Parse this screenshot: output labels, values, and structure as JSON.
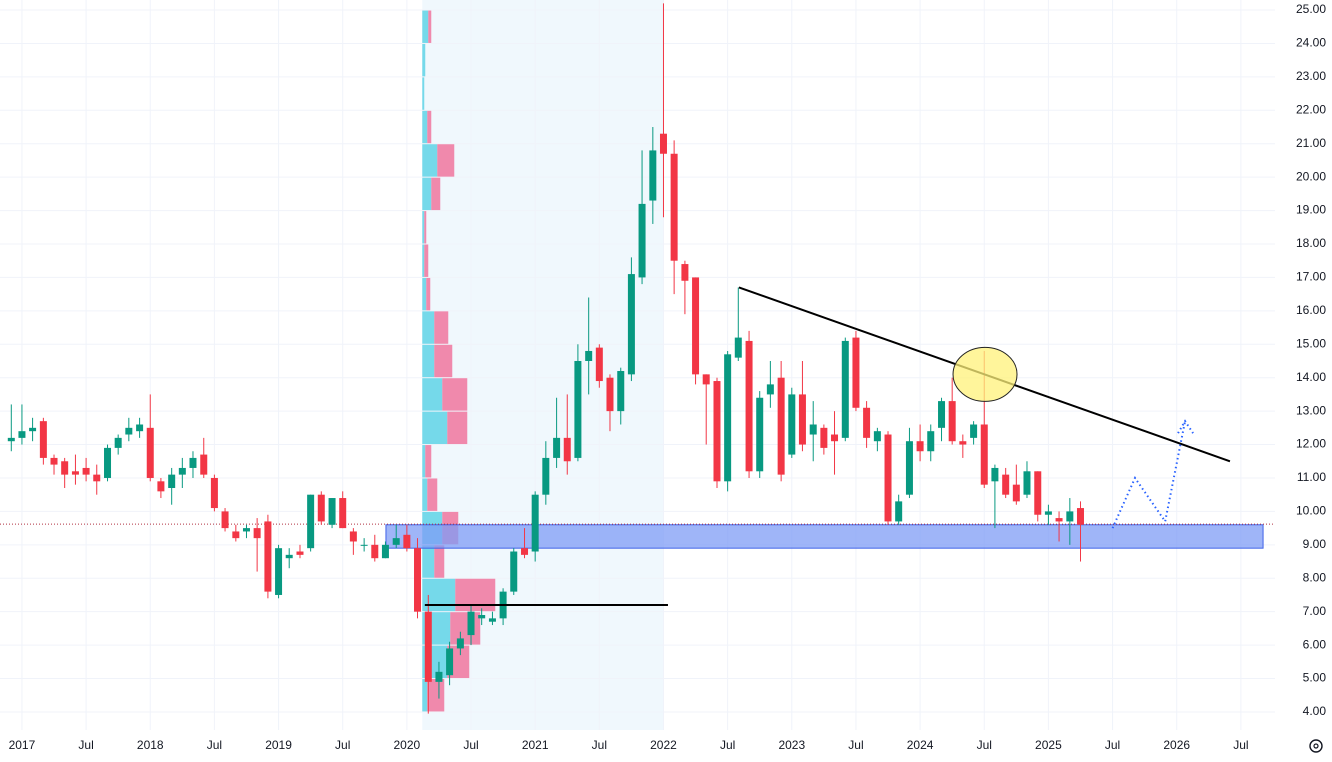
{
  "chart_data": {
    "type": "candlestick",
    "x": [
      2016.917,
      2017,
      2017.083,
      2017.167,
      2017.25,
      2017.333,
      2017.417,
      2017.5,
      2017.583,
      2017.667,
      2017.75,
      2017.833,
      2017.917,
      2018,
      2018.083,
      2018.167,
      2018.25,
      2018.333,
      2018.417,
      2018.5,
      2018.583,
      2018.667,
      2018.75,
      2018.833,
      2018.917,
      2019,
      2019.083,
      2019.167,
      2019.25,
      2019.333,
      2019.417,
      2019.5,
      2019.583,
      2019.667,
      2019.75,
      2019.833,
      2019.917,
      2020,
      2020.083,
      2020.167,
      2020.25,
      2020.333,
      2020.417,
      2020.5,
      2020.583,
      2020.667,
      2020.75,
      2020.833,
      2020.917,
      2021,
      2021.083,
      2021.167,
      2021.25,
      2021.333,
      2021.417,
      2021.5,
      2021.583,
      2021.667,
      2021.75,
      2021.833,
      2021.917,
      2022,
      2022.083,
      2022.167,
      2022.25,
      2022.333,
      2022.417,
      2022.5,
      2022.583,
      2022.667,
      2022.75,
      2022.833,
      2022.917,
      2023,
      2023.083,
      2023.167,
      2023.25,
      2023.333,
      2023.417,
      2023.5,
      2023.583,
      2023.667,
      2023.75,
      2023.833,
      2023.917,
      2024,
      2024.083,
      2024.167,
      2024.25,
      2024.333,
      2024.417,
      2024.5,
      2024.583,
      2024.667,
      2024.75,
      2024.833,
      2024.917,
      2025,
      2025.083,
      2025.167,
      2025.25
    ],
    "open": [
      12.1,
      12.2,
      12.4,
      12.7,
      11.6,
      11.5,
      11.2,
      11.3,
      11.1,
      11.0,
      11.9,
      12.3,
      12.4,
      12.5,
      10.9,
      10.7,
      11.1,
      11.3,
      11.7,
      11.0,
      10.0,
      9.4,
      9.4,
      9.5,
      9.7,
      7.5,
      8.6,
      8.8,
      8.9,
      10.5,
      9.6,
      10.4,
      9.4,
      9.0,
      9.0,
      8.6,
      9.0,
      9.3,
      8.9,
      7.0,
      4.9,
      5.1,
      5.9,
      6.3,
      6.8,
      6.7,
      6.8,
      7.6,
      8.9,
      8.8,
      10.5,
      11.6,
      12.2,
      11.6,
      14.5,
      14.9,
      14.0,
      13.0,
      14.1,
      17.0,
      19.3,
      21.3,
      20.7,
      17.4,
      17.0,
      14.1,
      13.9,
      10.9,
      14.6,
      15.1,
      11.2,
      13.5,
      14.0,
      11.7,
      13.5,
      12.3,
      12.5,
      12.3,
      12.2,
      15.2,
      13.1,
      12.1,
      12.3,
      9.7,
      10.5,
      12.1,
      11.8,
      12.5,
      13.3,
      12.1,
      12.2,
      12.6,
      10.9,
      11.1,
      10.8,
      10.5,
      11.2,
      9.9,
      9.8,
      9.7,
      10.1
    ],
    "high": [
      13.2,
      13.2,
      12.8,
      12.8,
      11.7,
      11.6,
      11.7,
      11.6,
      11.4,
      12.0,
      12.3,
      12.8,
      12.8,
      13.5,
      11.0,
      11.3,
      11.6,
      11.8,
      12.2,
      11.1,
      10.1,
      9.6,
      9.6,
      9.8,
      9.9,
      9.0,
      8.9,
      9.0,
      10.5,
      10.6,
      10.4,
      10.6,
      9.5,
      9.2,
      9.3,
      9.1,
      9.6,
      9.6,
      9.2,
      7.5,
      5.5,
      6.1,
      6.4,
      7.2,
      7.1,
      7.0,
      7.7,
      8.9,
      9.5,
      10.6,
      12.1,
      13.4,
      13.5,
      15.0,
      16.4,
      15.0,
      14.1,
      14.3,
      17.6,
      20.8,
      21.5,
      25.2,
      21.1,
      17.5,
      17.0,
      14.1,
      14.0,
      14.8,
      16.7,
      15.4,
      13.6,
      14.5,
      14.5,
      13.7,
      14.5,
      13.3,
      12.6,
      13.0,
      15.2,
      15.4,
      13.3,
      12.5,
      12.4,
      10.5,
      12.5,
      12.6,
      12.6,
      13.4,
      14.0,
      12.3,
      12.7,
      14.8,
      11.4,
      11.3,
      11.4,
      11.5,
      11.2,
      10.2,
      10.0,
      10.4,
      10.3
    ],
    "low": [
      11.8,
      12.0,
      12.1,
      11.4,
      11.1,
      10.7,
      10.8,
      10.9,
      10.5,
      10.9,
      11.7,
      12.1,
      12.2,
      10.9,
      10.4,
      10.2,
      10.7,
      11.0,
      11.0,
      10.0,
      9.4,
      9.1,
      9.2,
      8.2,
      7.4,
      7.4,
      8.3,
      8.6,
      8.8,
      9.6,
      9.5,
      9.5,
      8.7,
      8.8,
      8.5,
      8.6,
      8.9,
      8.8,
      6.8,
      3.95,
      4.4,
      4.8,
      5.7,
      6.0,
      6.6,
      6.6,
      6.6,
      7.5,
      8.6,
      8.5,
      10.2,
      11.3,
      11.1,
      11.5,
      13.5,
      13.7,
      12.4,
      12.6,
      13.9,
      16.8,
      18.6,
      18.8,
      16.5,
      15.9,
      13.8,
      12.0,
      10.7,
      10.6,
      14.5,
      11.0,
      11.0,
      13.1,
      10.9,
      11.6,
      11.8,
      11.5,
      11.7,
      11.1,
      12.1,
      13.0,
      11.9,
      11.8,
      9.6,
      9.6,
      10.4,
      11.5,
      11.5,
      12.1,
      12.0,
      11.6,
      12.0,
      10.7,
      9.5,
      10.4,
      10.2,
      10.4,
      9.7,
      9.6,
      9.1,
      9.0,
      8.5
    ],
    "close": [
      12.2,
      12.4,
      12.5,
      11.6,
      11.4,
      11.1,
      11.1,
      11.1,
      10.9,
      11.9,
      12.2,
      12.5,
      12.6,
      11.0,
      10.6,
      11.1,
      11.3,
      11.6,
      11.1,
      10.1,
      9.5,
      9.2,
      9.5,
      9.2,
      7.6,
      8.9,
      8.7,
      8.7,
      10.5,
      9.7,
      10.4,
      9.5,
      9.1,
      9.0,
      8.6,
      9.0,
      9.2,
      8.9,
      7.0,
      4.9,
      5.2,
      5.9,
      6.2,
      7.0,
      6.9,
      6.8,
      7.6,
      8.8,
      8.7,
      10.5,
      11.6,
      12.2,
      11.5,
      14.5,
      14.8,
      13.9,
      13.0,
      14.2,
      17.1,
      19.2,
      20.8,
      20.7,
      17.5,
      16.9,
      14.1,
      13.8,
      10.9,
      14.7,
      15.2,
      11.2,
      13.4,
      13.8,
      11.1,
      13.5,
      12.0,
      12.6,
      11.9,
      12.1,
      15.1,
      13.1,
      12.2,
      12.4,
      9.7,
      10.3,
      12.1,
      11.8,
      12.4,
      13.3,
      12.1,
      12.0,
      12.6,
      10.8,
      11.3,
      10.5,
      10.3,
      11.2,
      9.9,
      10.0,
      9.7,
      10.0,
      9.6
    ],
    "up_color": "#089981",
    "down_color": "#f23645",
    "xlim": [
      2016.829,
      2026.766
    ],
    "ylim": [
      3.46,
      25.3
    ],
    "xticks": [
      {
        "value": 2017,
        "label": "2017"
      },
      {
        "value": 2017.5,
        "label": "Jul"
      },
      {
        "value": 2018,
        "label": "2018"
      },
      {
        "value": 2018.5,
        "label": "Jul"
      },
      {
        "value": 2019,
        "label": "2019"
      },
      {
        "value": 2019.5,
        "label": "Jul"
      },
      {
        "value": 2020,
        "label": "2020"
      },
      {
        "value": 2020.5,
        "label": "Jul"
      },
      {
        "value": 2021,
        "label": "2021"
      },
      {
        "value": 2021.5,
        "label": "Jul"
      },
      {
        "value": 2022,
        "label": "2022"
      },
      {
        "value": 2022.5,
        "label": "Jul"
      },
      {
        "value": 2023,
        "label": "2023"
      },
      {
        "value": 2023.5,
        "label": "Jul"
      },
      {
        "value": 2024,
        "label": "2024"
      },
      {
        "value": 2024.5,
        "label": "Jul"
      },
      {
        "value": 2025,
        "label": "2025"
      },
      {
        "value": 2025.5,
        "label": "Jul"
      },
      {
        "value": 2026,
        "label": "2026"
      },
      {
        "value": 2026.5,
        "label": "Jul"
      }
    ],
    "yticks": [
      {
        "value": 4,
        "label": "4.00"
      },
      {
        "value": 5,
        "label": "5.00"
      },
      {
        "value": 6,
        "label": "6.00"
      },
      {
        "value": 7,
        "label": "7.00"
      },
      {
        "value": 8,
        "label": "8.00"
      },
      {
        "value": 9,
        "label": "9.00"
      },
      {
        "value": 10,
        "label": "10.00"
      },
      {
        "value": 11,
        "label": "11.00"
      },
      {
        "value": 12,
        "label": "12.00"
      },
      {
        "value": 13,
        "label": "13.00"
      },
      {
        "value": 14,
        "label": "14.00"
      },
      {
        "value": 15,
        "label": "15.00"
      },
      {
        "value": 16,
        "label": "16.00"
      },
      {
        "value": 17,
        "label": "17.00"
      },
      {
        "value": 18,
        "label": "18.00"
      },
      {
        "value": 19,
        "label": "19.00"
      },
      {
        "value": 20,
        "label": "20.00"
      },
      {
        "value": 21,
        "label": "21.00"
      },
      {
        "value": 22,
        "label": "22.00"
      },
      {
        "value": 23,
        "label": "23.00"
      },
      {
        "value": 24,
        "label": "24.00"
      },
      {
        "value": 25,
        "label": "25.00"
      }
    ],
    "grid": true,
    "volume_profile": {
      "range": [
        2020.12,
        2022.0
      ],
      "bins": [
        4,
        5,
        6,
        7,
        8,
        9,
        10,
        11,
        12,
        13,
        14,
        15,
        16,
        17,
        18,
        19,
        20,
        21,
        22,
        23,
        24,
        25
      ],
      "up_volume": [
        5,
        25,
        28,
        33,
        12,
        20,
        5,
        3,
        25,
        20,
        12,
        12,
        4,
        2,
        2,
        9,
        15,
        5,
        2,
        3,
        6
      ],
      "down_volume": [
        17,
        22,
        30,
        40,
        10,
        16,
        10,
        6,
        20,
        25,
        18,
        14,
        4,
        4,
        2,
        9,
        17,
        4,
        0,
        0,
        3
      ],
      "up_color": "#5fd3e6",
      "down_color": "#f0759d"
    },
    "support_zone": {
      "x": [
        2019.837,
        2026.673
      ],
      "y": [
        8.9,
        9.6
      ],
      "color": "#7f9cf5"
    },
    "trend_line": {
      "x": [
        2022.588,
        2026.415
      ],
      "y": [
        16.7,
        11.5
      ]
    },
    "level_line": {
      "x": [
        2020.14,
        2022.035
      ],
      "y": 7.2
    },
    "highlight": {
      "x": 2024.506,
      "y": 14.1
    },
    "projection": {
      "x": [
        2025.5,
        2025.675,
        2025.91,
        2026.065
      ],
      "y": [
        9.5,
        11.0,
        9.7,
        12.7
      ]
    },
    "last_price": 9.62
  }
}
